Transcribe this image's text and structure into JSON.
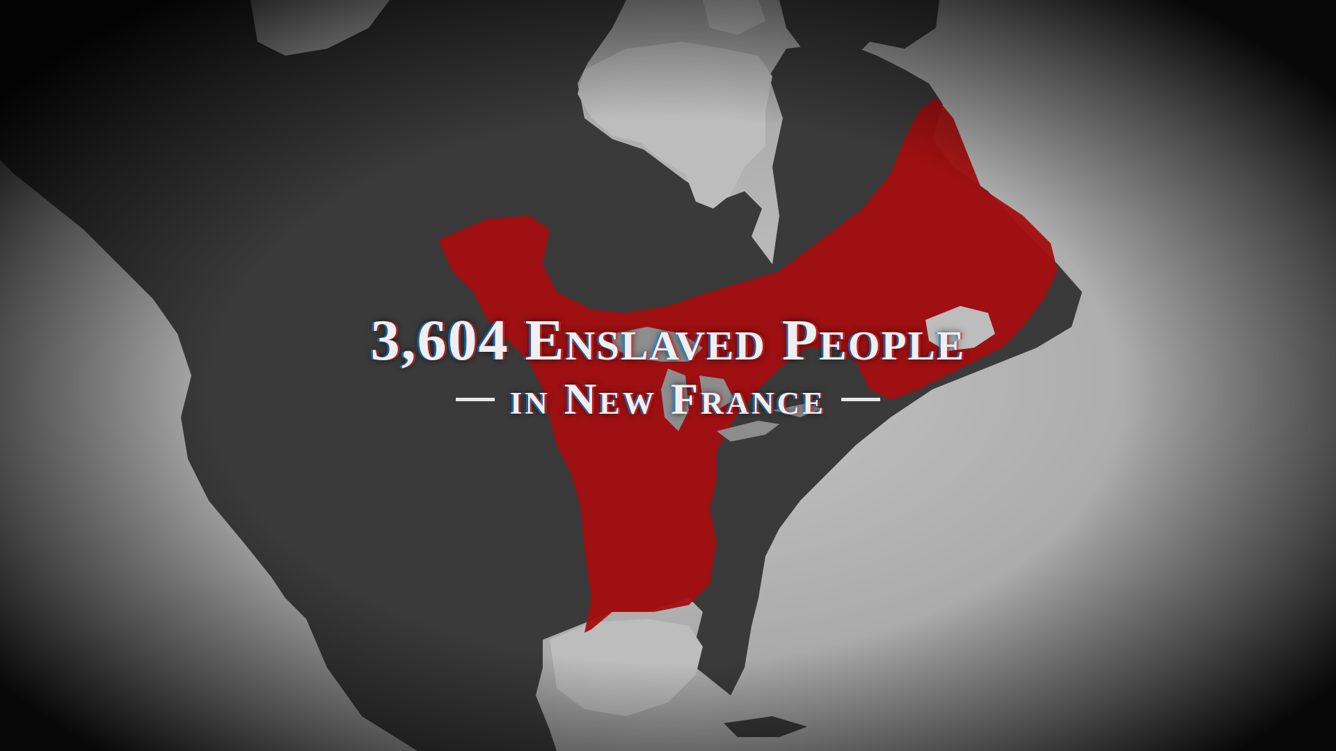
{
  "title": {
    "number": "3,604",
    "main": "Enslaved People",
    "subtitle": "in New France"
  },
  "map": {
    "subject": "North America",
    "highlighted_region": "New France",
    "highlight_color": "#a30e0f",
    "land_color": "#3a3a3a",
    "water_color": "#bdbdbd"
  }
}
